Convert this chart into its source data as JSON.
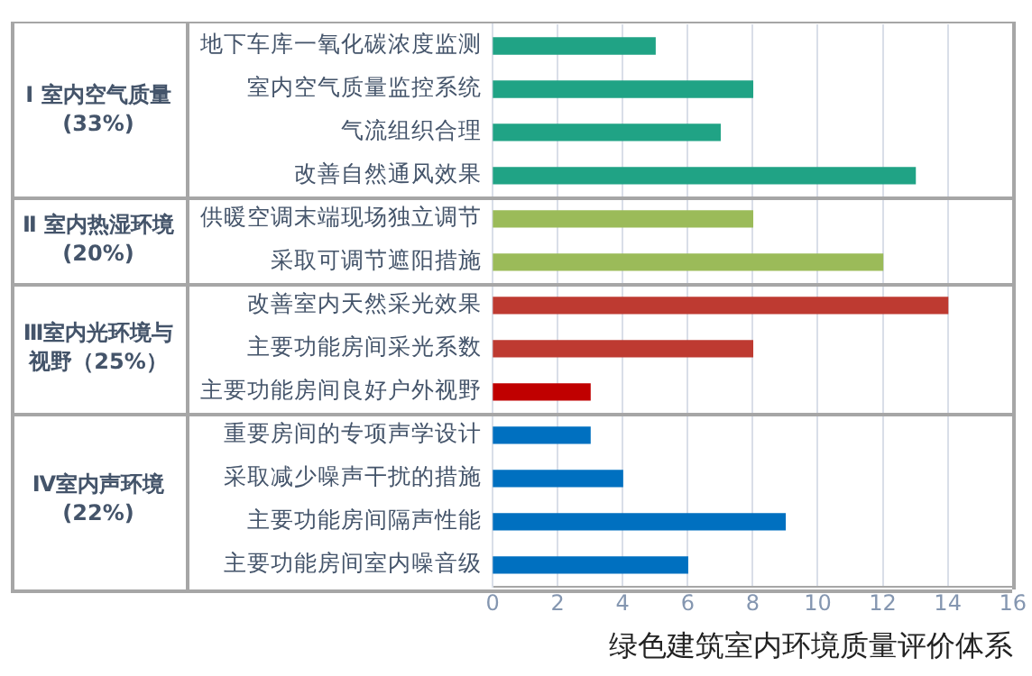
{
  "chart_data": {
    "type": "bar",
    "orientation": "horizontal",
    "xlabel": "绿色建筑室内环境质量评价体系",
    "categories": [
      "地下车库一氧化碳浓度监测",
      "室内空气质量监控系统",
      "气流组织合理",
      "改善自然通风效果",
      "供暖空调末端现场独立调节",
      "采取可调节遮阳措施",
      "改善室内天然采光效果",
      "主要功能房间采光系数",
      "主要功能房间良好户外视野",
      "重要房间的专项声学设计",
      "采取减少噪声干扰的措施",
      "主要功能房间隔声性能",
      "主要功能房间室内噪音级"
    ],
    "series": [
      {
        "color": "#20a385",
        "values": [
          5,
          8,
          7,
          13,
          null,
          null,
          null,
          null,
          null,
          null,
          null,
          null,
          null
        ]
      },
      {
        "color": "#9bbb59",
        "values": [
          null,
          null,
          null,
          null,
          8,
          12,
          null,
          null,
          null,
          null,
          null,
          null,
          null
        ]
      },
      {
        "color": "#be3a31",
        "colors": [
          null,
          null,
          null,
          null,
          null,
          null,
          "#be3a31",
          "#be3a31",
          "#c00000",
          null,
          null,
          null,
          null
        ],
        "values": [
          null,
          null,
          null,
          null,
          null,
          null,
          14,
          8,
          3,
          null,
          null,
          null,
          null
        ]
      },
      {
        "color": "#0070c0",
        "values": [
          null,
          null,
          null,
          null,
          null,
          null,
          null,
          null,
          null,
          3,
          4,
          9,
          6
        ]
      }
    ],
    "annotations": [
      "Ⅰ 室内空气质量(33%)",
      "Ⅱ 室内热湿环境(20%)",
      "Ⅲ室内光环境与视野（25%）",
      "Ⅳ室内声环境(22%)"
    ],
    "xlim": [
      0,
      16
    ],
    "xticks": [
      0,
      2,
      4,
      6,
      8,
      10,
      12,
      14,
      16
    ],
    "grid": "x"
  }
}
